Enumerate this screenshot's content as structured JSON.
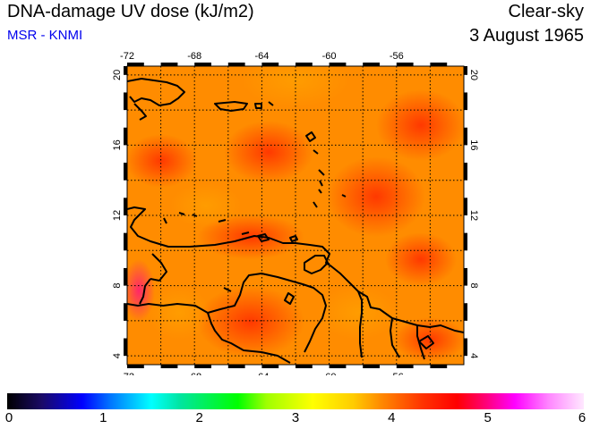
{
  "header": {
    "title": "DNA-damage UV dose (kJ/m2)",
    "source": "MSR - KNMI",
    "condition": "Clear-sky",
    "date": "3 August 1965"
  },
  "map": {
    "lon_ticks": [
      "-72",
      "-68",
      "-64",
      "-60",
      "-56"
    ],
    "lat_ticks": [
      "4",
      "8",
      "12",
      "16",
      "20"
    ],
    "lon_range": [
      -72,
      -52
    ],
    "lat_range": [
      3.5,
      20.5
    ],
    "background_color": "#ff8c00",
    "hotspot_color": "#ff3000",
    "peak_color": "#ff1a5a",
    "coast_color": "#000000"
  },
  "colorbar": {
    "labels": [
      "0",
      "1",
      "2",
      "3",
      "4",
      "5",
      "6"
    ],
    "min": 0,
    "max": 6
  }
}
